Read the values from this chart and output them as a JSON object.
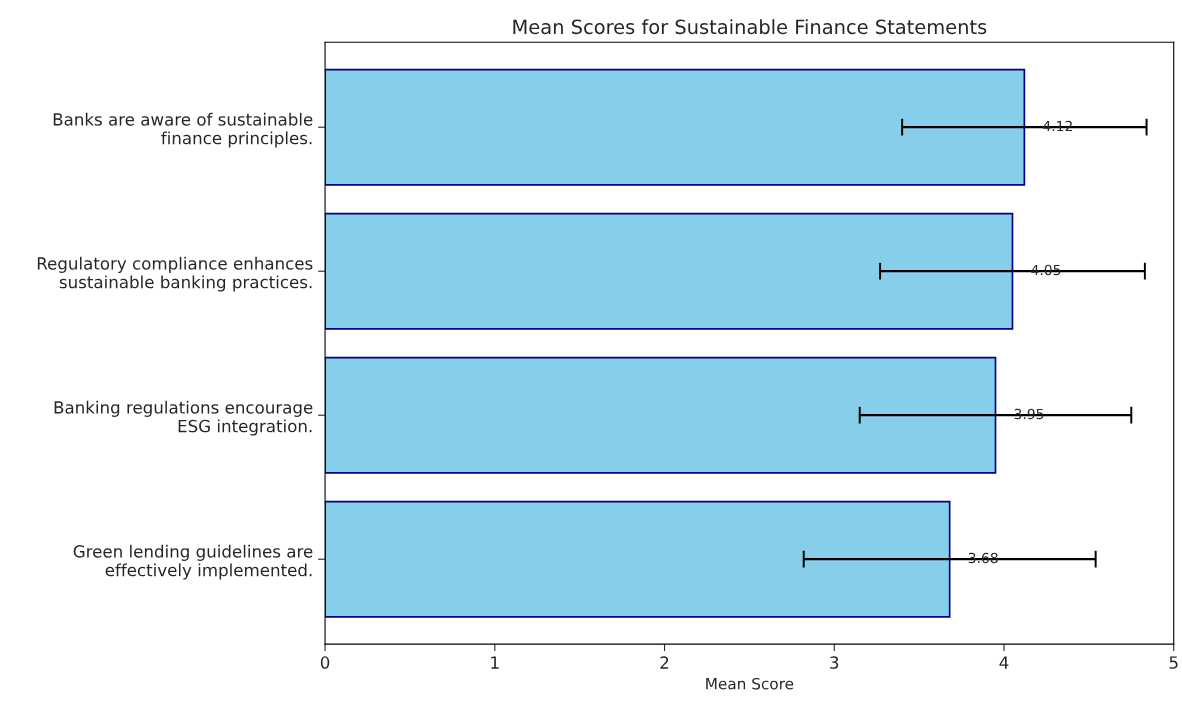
{
  "chart_data": {
    "type": "bar",
    "orientation": "horizontal",
    "title": "Mean Scores for Sustainable Finance Statements",
    "xlabel": "Mean Score",
    "categories": [
      "Banks are aware of sustainable\nfinance principles.",
      "Regulatory compliance enhances\nsustainable banking practices.",
      "Banking regulations encourage\nESG integration.",
      "Green lending guidelines are\neffectively implemented."
    ],
    "values": [
      4.12,
      4.05,
      3.95,
      3.68
    ],
    "errors": [
      0.72,
      0.78,
      0.8,
      0.86
    ],
    "color": "#87ceeb",
    "xlim": [
      0,
      5
    ],
    "xticks": [
      0,
      1,
      2,
      3,
      4,
      5
    ],
    "data_labels": true,
    "grid": false,
    "legend": false
  }
}
